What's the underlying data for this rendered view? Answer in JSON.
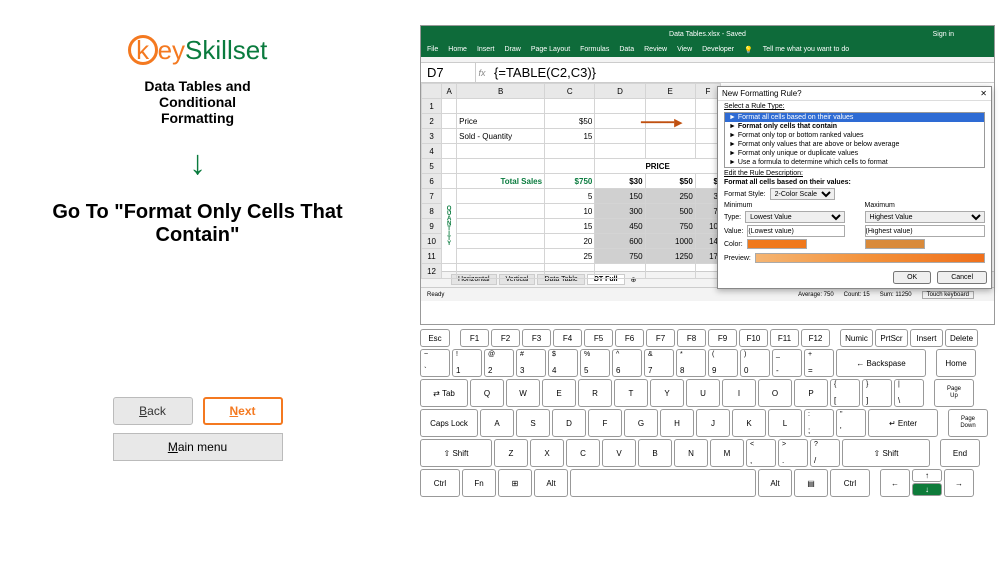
{
  "logo": {
    "key": "key",
    "skillset": "Skillset"
  },
  "lesson": {
    "title": "Data Tables and\nConditional\nFormatting",
    "instruction": "Go To \"Format Only Cells That Contain\""
  },
  "nav": {
    "back": "Back",
    "next": "Next",
    "main": "Main menu"
  },
  "excel": {
    "title": "Data Tables.xlsx - Saved",
    "signin": "Sign in",
    "ribbon": [
      "File",
      "Home",
      "Insert",
      "Draw",
      "Page Layout",
      "Formulas",
      "Data",
      "Review",
      "View",
      "Developer"
    ],
    "tell": "Tell me what you want to do",
    "namebox": "D7",
    "formula": "{=TABLE(C2,C3)}",
    "cols": [
      "A",
      "B",
      "C",
      "D",
      "E",
      "F"
    ],
    "r2": {
      "label": "Price",
      "val": "$50"
    },
    "r3": {
      "label": "Sold - Quantity",
      "val": "15"
    },
    "priceHdr": "PRICE",
    "r6": {
      "label": "Total Sales",
      "val": "$750",
      "d": "$30",
      "e": "$50",
      "f": "$"
    },
    "qtyLabel": "QUANTITY",
    "dataRows": [
      {
        "q": "5",
        "d": "150",
        "e": "250",
        "f": "3"
      },
      {
        "q": "10",
        "d": "300",
        "e": "500",
        "f": "7"
      },
      {
        "q": "15",
        "d": "450",
        "e": "750",
        "f": "10"
      },
      {
        "q": "20",
        "d": "600",
        "e": "1000",
        "f": "14"
      },
      {
        "q": "25",
        "d": "750",
        "e": "1250",
        "f": "17"
      }
    ],
    "tabs": [
      "Horizontal",
      "Vertical",
      "Data Table",
      "DT Full"
    ],
    "activeTab": 3,
    "status": {
      "ready": "Ready",
      "avg": "Average: 750",
      "count": "Count: 15",
      "sum": "Sum: 11250",
      "touch": "Touch keyboard"
    }
  },
  "dialog": {
    "title": "New Formatting Rule",
    "ruleTypeLabel": "Select a Rule Type:",
    "ruleTypes": [
      "Format all cells based on their values",
      "Format only cells that contain",
      "Format only top or bottom ranked values",
      "Format only values that are above or below average",
      "Format only unique or duplicate values",
      "Use a formula to determine which cells to format"
    ],
    "highlightIdx": 0,
    "targetIdx": 1,
    "editLabel": "Edit the Rule Description:",
    "formatAll": "Format all cells based on their values:",
    "styleLabel": "Format Style:",
    "styleVal": "2-Color Scale",
    "minLabel": "Minimum",
    "maxLabel": "Maximum",
    "typeLabel": "Type:",
    "minType": "Lowest Value",
    "maxType": "Highest Value",
    "valueLabel": "Value:",
    "minVal": "(Lowest value)",
    "maxVal": "(Highest value)",
    "colorLabel": "Color:",
    "previewLabel": "Preview:",
    "ok": "OK",
    "cancel": "Cancel"
  },
  "keyboard": {
    "fn": [
      "Esc",
      "F1",
      "F2",
      "F3",
      "F4",
      "F5",
      "F6",
      "F7",
      "F8",
      "F9",
      "F10",
      "F11",
      "F12",
      "Numic",
      "PrtScr",
      "Insert",
      "Delete"
    ],
    "r1": [
      {
        "s": "~",
        "m": "`"
      },
      {
        "s": "!",
        "m": "1"
      },
      {
        "s": "@",
        "m": "2"
      },
      {
        "s": "#",
        "m": "3"
      },
      {
        "s": "$",
        "m": "4"
      },
      {
        "s": "%",
        "m": "5"
      },
      {
        "s": "^",
        "m": "6"
      },
      {
        "s": "&",
        "m": "7"
      },
      {
        "s": "*",
        "m": "8"
      },
      {
        "s": "(",
        "m": "9"
      },
      {
        "s": ")",
        "m": "0"
      },
      {
        "s": "_",
        "m": "-"
      },
      {
        "s": "+",
        "m": "="
      }
    ],
    "r1_back": "← Backspase",
    "r1_home": "Home",
    "r2_tab": "Tab",
    "r2": [
      "Q",
      "W",
      "E",
      "R",
      "T",
      "Y",
      "U",
      "I",
      "O",
      "P"
    ],
    "r2_br": [
      {
        "s": "{",
        "m": "["
      },
      {
        "s": "}",
        "m": "]"
      },
      {
        "s": "|",
        "m": "\\"
      }
    ],
    "r2_pgup": "Page\nUp",
    "r3_caps": "Caps Lock",
    "r3": [
      "A",
      "S",
      "D",
      "F",
      "G",
      "H",
      "J",
      "K",
      "L"
    ],
    "r3_sc": [
      {
        "s": ":",
        "m": ";"
      },
      {
        "s": "\"",
        "m": "'"
      }
    ],
    "r3_enter": "Enter",
    "r3_pgdn": "Page\nDown",
    "r4_shift": "Shift",
    "r4": [
      "Z",
      "X",
      "C",
      "V",
      "B",
      "N",
      "M"
    ],
    "r4_p": [
      {
        "s": "<",
        "m": ","
      },
      {
        "s": ">",
        "m": "."
      },
      {
        "s": "?",
        "m": "/"
      }
    ],
    "r4_end": "End",
    "r5": {
      "ctrl": "Ctrl",
      "fn": "Fn",
      "win": "⊞",
      "alt": "Alt"
    }
  }
}
